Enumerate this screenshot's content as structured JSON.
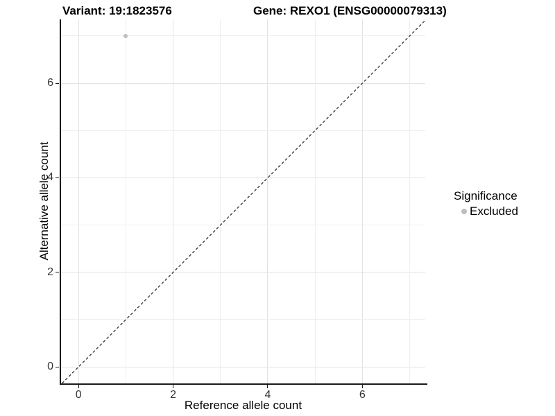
{
  "titles": {
    "variant": "Variant: 19:1823576",
    "gene": "Gene: REXO1 (ENSG00000079313)"
  },
  "axes": {
    "x_label": "Reference allele count",
    "y_label": "Alternative allele count"
  },
  "legend": {
    "title": "Significance",
    "items": [
      {
        "label": "Excluded",
        "color": "#bdbdbd"
      }
    ]
  },
  "chart_data": {
    "type": "scatter",
    "title": "Variant: 19:1823576 — Gene: REXO1 (ENSG00000079313)",
    "xlabel": "Reference allele count",
    "ylabel": "Alternative allele count",
    "xlim": [
      -0.37,
      7.33
    ],
    "ylim": [
      -0.35,
      7.35
    ],
    "x_ticks": [
      0,
      2,
      4,
      6
    ],
    "y_ticks": [
      0,
      2,
      4,
      6
    ],
    "x_minor_ticks": [
      1,
      3,
      5,
      7
    ],
    "y_minor_ticks": [
      1,
      3,
      5,
      7
    ],
    "grid": true,
    "legend_position": "right",
    "series": [
      {
        "name": "Excluded",
        "color": "#bdbdbd",
        "points": [
          {
            "x": 1,
            "y": 7
          }
        ]
      }
    ],
    "reference_line": {
      "kind": "identity",
      "dashed": true,
      "color": "#000000"
    }
  },
  "colors": {
    "background": "#ffffff",
    "grid_major": "#e3e3e3",
    "grid_minor": "#eeeeee",
    "axis_line": "#1a1a1a",
    "tick_text": "#333333",
    "point": "#bdbdbd"
  }
}
